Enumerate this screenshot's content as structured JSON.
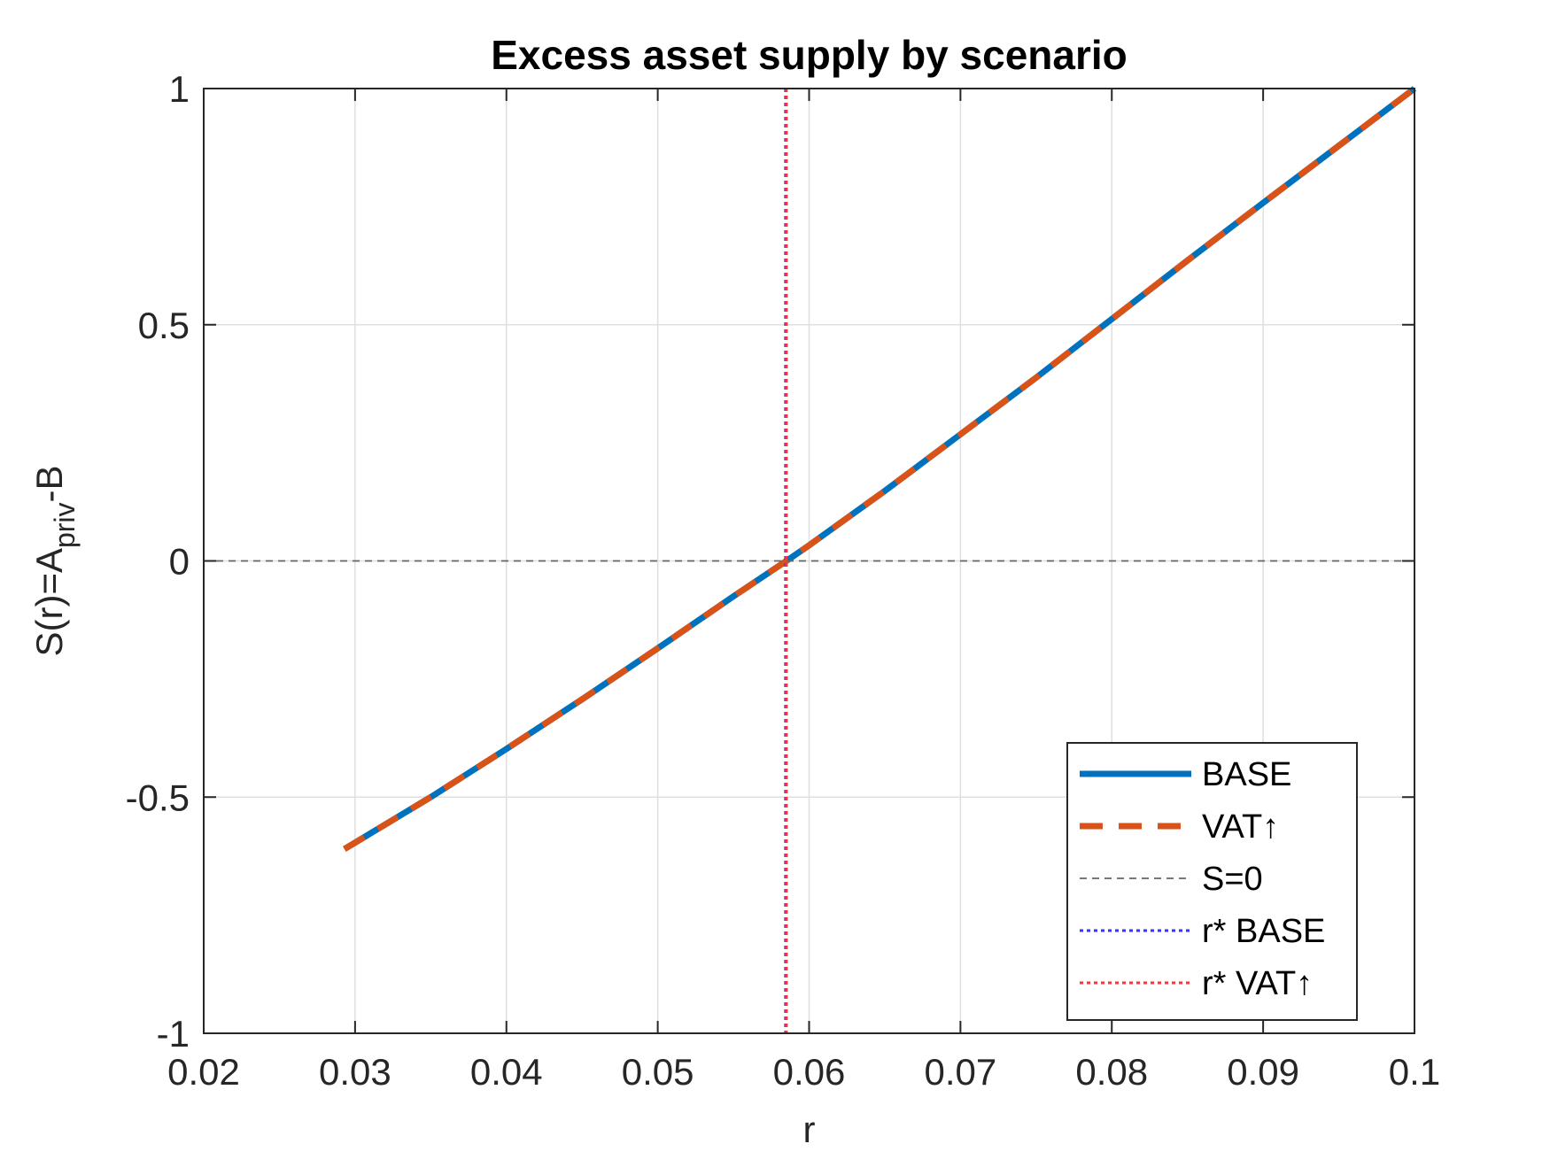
{
  "chart_data": {
    "type": "line",
    "title": "Excess asset supply by scenario",
    "xlabel": "r",
    "ylabel": {
      "main": "S(r)=A",
      "subscript": "priv",
      "suffix": "-B"
    },
    "xlim": [
      0.02,
      0.1
    ],
    "ylim": [
      -1,
      1
    ],
    "xticks": [
      0.02,
      0.03,
      0.04,
      0.05,
      0.06,
      0.07,
      0.08,
      0.09,
      0.1
    ],
    "xtick_labels": [
      "0.02",
      "0.03",
      "0.04",
      "0.05",
      "0.06",
      "0.07",
      "0.08",
      "0.09",
      "0.1"
    ],
    "yticks": [
      -1,
      -0.5,
      0,
      0.5,
      1
    ],
    "ytick_labels": [
      "-1",
      "-0.5",
      "0",
      "0.5",
      "1"
    ],
    "grid": true,
    "legend_position": "bottom-right",
    "series": [
      {
        "name": "BASE",
        "style": "solid",
        "color": "#0072BD",
        "x": [
          0.0293,
          0.035,
          0.04,
          0.045,
          0.05,
          0.055,
          0.0585,
          0.06,
          0.065,
          0.07,
          0.075,
          0.08,
          0.085,
          0.09,
          0.095,
          0.1
        ],
        "y": [
          -0.61,
          -0.5,
          -0.398,
          -0.293,
          -0.185,
          -0.075,
          0.0,
          0.033,
          0.148,
          0.268,
          0.388,
          0.512,
          0.636,
          0.758,
          0.879,
          1.0
        ]
      },
      {
        "name": "VAT↑",
        "style": "dashed",
        "color": "#D95319",
        "x": [
          0.0293,
          0.035,
          0.04,
          0.045,
          0.05,
          0.055,
          0.0585,
          0.06,
          0.065,
          0.07,
          0.075,
          0.08,
          0.085,
          0.09,
          0.095,
          0.1
        ],
        "y": [
          -0.61,
          -0.5,
          -0.398,
          -0.293,
          -0.185,
          -0.075,
          0.0,
          0.033,
          0.148,
          0.268,
          0.388,
          0.512,
          0.636,
          0.758,
          0.879,
          1.0
        ]
      },
      {
        "name": "S=0",
        "style": "dashed-thin",
        "color": "#666666",
        "y_constant": 0
      },
      {
        "name": "r* BASE",
        "style": "dotted",
        "color": "#3333FF",
        "x_constant": 0.0585
      },
      {
        "name": "r* VAT↑",
        "style": "dotted",
        "color": "#FF3333",
        "x_constant": 0.0585
      }
    ]
  }
}
